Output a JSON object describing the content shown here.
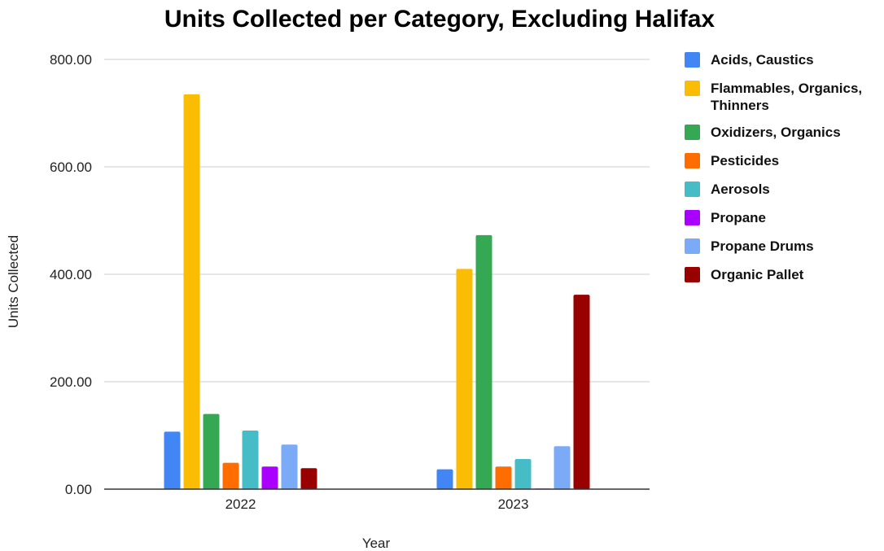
{
  "chart_data": {
    "type": "bar",
    "title": "Units Collected per Category, Excluding Halifax",
    "xlabel": "Year",
    "ylabel": "Units Collected",
    "ylim": [
      0,
      800
    ],
    "yticks": [
      "0.00",
      "200.00",
      "400.00",
      "600.00",
      "800.00"
    ],
    "grid": true,
    "legend_position": "right",
    "categories": [
      "2022",
      "2023"
    ],
    "series": [
      {
        "name": "Acids, Caustics",
        "color": "#4285F4",
        "values": [
          107,
          37
        ]
      },
      {
        "name": "Flammables, Organics, Thinners",
        "color": "#FBBC04",
        "values": [
          735,
          410
        ]
      },
      {
        "name": "Oxidizers, Organics",
        "color": "#34A853",
        "values": [
          140,
          473
        ]
      },
      {
        "name": "Pesticides",
        "color": "#FF6D01",
        "values": [
          49,
          42
        ]
      },
      {
        "name": "Aerosols",
        "color": "#46BDC6",
        "values": [
          109,
          56
        ]
      },
      {
        "name": "Propane",
        "color": "#AA00FF",
        "values": [
          42,
          1
        ]
      },
      {
        "name": "Propane Drums",
        "color": "#7BAAF7",
        "values": [
          83,
          80
        ]
      },
      {
        "name": "Organic Pallet",
        "color": "#990000",
        "values": [
          39,
          362
        ]
      }
    ]
  }
}
